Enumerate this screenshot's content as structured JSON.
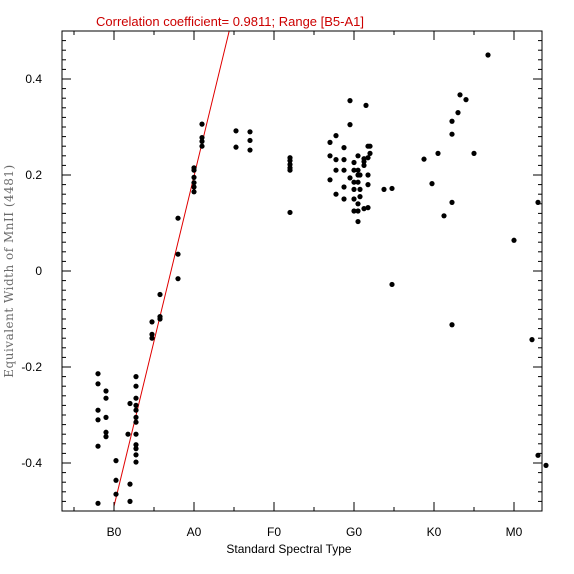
{
  "chart_data": {
    "type": "scatter",
    "title": "Correlation coefficient= 0.9811; Range [B5-A1]",
    "xlabel": "Standard Spectral Type",
    "ylabel": "Equivalent Width of MnII (4481)",
    "xlim": [
      -1.3,
      10.7
    ],
    "ylim": [
      -0.5,
      0.5
    ],
    "x_categories": [
      "B0",
      "A0",
      "F0",
      "G0",
      "K0",
      "M0"
    ],
    "x_category_positions": [
      0,
      2,
      4,
      6,
      8,
      10
    ],
    "y_ticks": [
      -0.4,
      -0.2,
      0,
      0.2,
      0.4
    ],
    "y_tick_labels": [
      "-0.4",
      "-0.2",
      "0",
      "0.2",
      "0.4"
    ],
    "fit_line": {
      "x": [
        0.0,
        2.88
      ],
      "y": [
        -0.49,
        0.5
      ]
    },
    "series": [
      {
        "points": [
          [
            -0.4,
            -0.484
          ],
          [
            -0.4,
            -0.365
          ],
          [
            -0.4,
            -0.31
          ],
          [
            -0.4,
            -0.29
          ],
          [
            -0.4,
            -0.235
          ],
          [
            -0.4,
            -0.214
          ],
          [
            -0.2,
            -0.345
          ],
          [
            -0.2,
            -0.336
          ],
          [
            -0.2,
            -0.305
          ],
          [
            -0.2,
            -0.265
          ],
          [
            -0.2,
            -0.25
          ],
          [
            0.05,
            -0.465
          ],
          [
            0.05,
            -0.436
          ],
          [
            0.05,
            -0.395
          ],
          [
            0.4,
            -0.48
          ],
          [
            0.4,
            -0.444
          ],
          [
            0.35,
            -0.34
          ],
          [
            0.4,
            -0.276
          ],
          [
            0.55,
            -0.398
          ],
          [
            0.55,
            -0.383
          ],
          [
            0.55,
            -0.37
          ],
          [
            0.55,
            -0.362
          ],
          [
            0.55,
            -0.34
          ],
          [
            0.55,
            -0.315
          ],
          [
            0.55,
            -0.305
          ],
          [
            0.55,
            -0.29
          ],
          [
            0.55,
            -0.28
          ],
          [
            0.55,
            -0.265
          ],
          [
            0.55,
            -0.24
          ],
          [
            0.55,
            -0.22
          ],
          [
            0.95,
            -0.14
          ],
          [
            0.95,
            -0.132
          ],
          [
            0.95,
            -0.106
          ],
          [
            1.15,
            -0.1
          ],
          [
            1.15,
            -0.095
          ],
          [
            1.15,
            -0.049
          ],
          [
            1.6,
            -0.016
          ],
          [
            1.6,
            0.035
          ],
          [
            1.6,
            0.11
          ],
          [
            2.0,
            0.165
          ],
          [
            2.0,
            0.175
          ],
          [
            2.0,
            0.184
          ],
          [
            2.0,
            0.195
          ],
          [
            2.0,
            0.21
          ],
          [
            2.0,
            0.215
          ],
          [
            2.2,
            0.26
          ],
          [
            2.2,
            0.27
          ],
          [
            2.2,
            0.278
          ],
          [
            2.2,
            0.306
          ],
          [
            3.05,
            0.258
          ],
          [
            3.05,
            0.292
          ],
          [
            3.4,
            0.252
          ],
          [
            3.4,
            0.272
          ],
          [
            3.4,
            0.29
          ],
          [
            4.4,
            0.122
          ],
          [
            4.4,
            0.21
          ],
          [
            4.4,
            0.215
          ],
          [
            4.4,
            0.222
          ],
          [
            4.4,
            0.23
          ],
          [
            4.4,
            0.236
          ],
          [
            5.4,
            0.19
          ],
          [
            5.4,
            0.24
          ],
          [
            5.4,
            0.268
          ],
          [
            5.55,
            0.16
          ],
          [
            5.55,
            0.21
          ],
          [
            5.55,
            0.232
          ],
          [
            5.55,
            0.282
          ],
          [
            5.75,
            0.15
          ],
          [
            5.75,
            0.175
          ],
          [
            5.75,
            0.21
          ],
          [
            5.75,
            0.232
          ],
          [
            5.75,
            0.257
          ],
          [
            5.9,
            0.194
          ],
          [
            5.9,
            0.305
          ],
          [
            5.9,
            0.355
          ],
          [
            6.0,
            0.125
          ],
          [
            6.0,
            0.15
          ],
          [
            6.0,
            0.17
          ],
          [
            6.0,
            0.185
          ],
          [
            6.0,
            0.21
          ],
          [
            6.0,
            0.226
          ],
          [
            6.1,
            0.103
          ],
          [
            6.1,
            0.125
          ],
          [
            6.1,
            0.14
          ],
          [
            6.1,
            0.185
          ],
          [
            6.1,
            0.2
          ],
          [
            6.1,
            0.21
          ],
          [
            6.1,
            0.24
          ],
          [
            6.15,
            0.155
          ],
          [
            6.15,
            0.17
          ],
          [
            6.15,
            0.2
          ],
          [
            6.25,
            0.13
          ],
          [
            6.25,
            0.22
          ],
          [
            6.25,
            0.228
          ],
          [
            6.25,
            0.234
          ],
          [
            6.35,
            0.132
          ],
          [
            6.35,
            0.18
          ],
          [
            6.35,
            0.2
          ],
          [
            6.35,
            0.236
          ],
          [
            6.35,
            0.26
          ],
          [
            6.3,
            0.345
          ],
          [
            6.4,
            0.245
          ],
          [
            6.4,
            0.26
          ],
          [
            6.75,
            0.17
          ],
          [
            6.95,
            0.172
          ],
          [
            6.95,
            -0.028
          ],
          [
            7.75,
            0.233
          ],
          [
            7.95,
            0.182
          ],
          [
            8.1,
            0.245
          ],
          [
            8.25,
            0.115
          ],
          [
            8.45,
            -0.112
          ],
          [
            8.45,
            0.143
          ],
          [
            8.45,
            0.285
          ],
          [
            8.45,
            0.312
          ],
          [
            8.6,
            0.33
          ],
          [
            8.65,
            0.367
          ],
          [
            8.8,
            0.357
          ],
          [
            9.0,
            0.245
          ],
          [
            9.35,
            0.45
          ],
          [
            10.0,
            0.064
          ],
          [
            10.45,
            -0.143
          ],
          [
            10.6,
            0.143
          ],
          [
            10.6,
            -0.384
          ],
          [
            10.8,
            -0.405
          ]
        ]
      }
    ]
  }
}
